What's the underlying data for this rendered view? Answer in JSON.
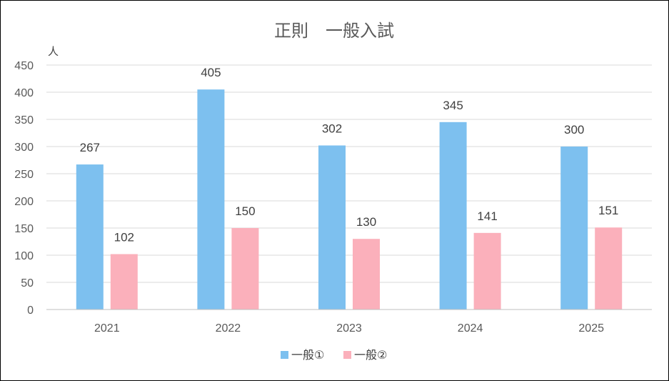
{
  "chart_data": {
    "type": "bar",
    "title": "正則　一般入試",
    "ylabel": "人",
    "xlabel": "",
    "categories": [
      "2021",
      "2022",
      "2023",
      "2024",
      "2025"
    ],
    "series": [
      {
        "name": "一般①",
        "color": "#7dc0ef",
        "values": [
          267,
          405,
          302,
          345,
          300
        ]
      },
      {
        "name": "一般②",
        "color": "#fbb0bb",
        "values": [
          102,
          150,
          130,
          141,
          151
        ]
      }
    ],
    "ylim": [
      0,
      450
    ],
    "yticks": [
      0,
      50,
      100,
      150,
      200,
      250,
      300,
      350,
      400,
      450
    ],
    "grid": true,
    "legend": "bottom"
  }
}
